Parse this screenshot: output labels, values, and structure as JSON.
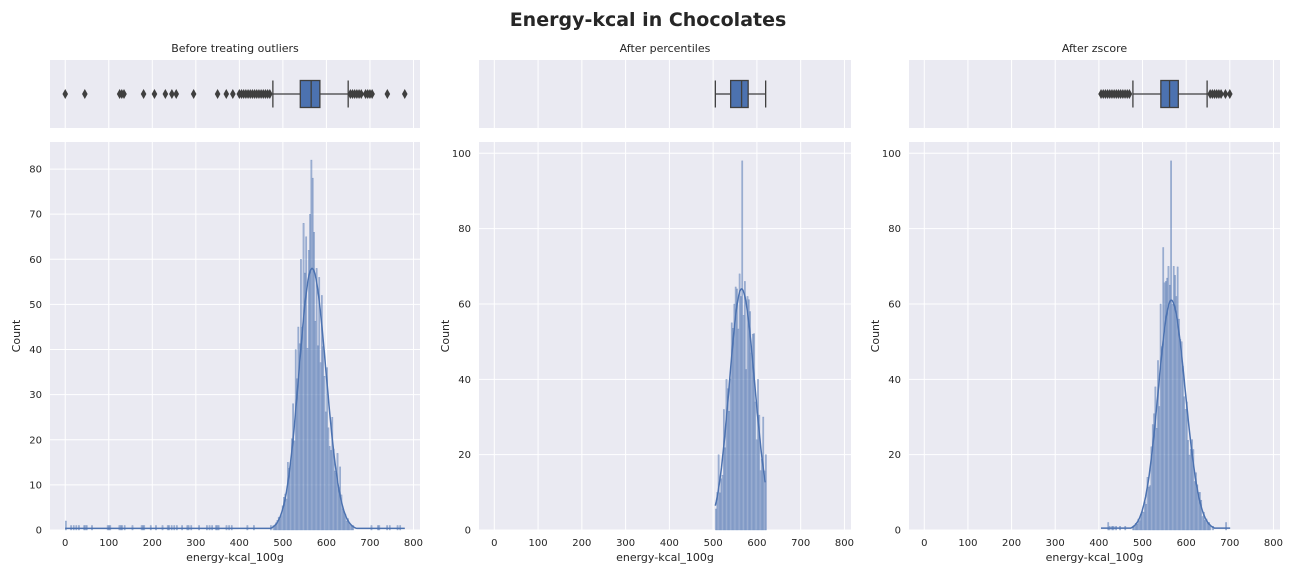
{
  "figure": {
    "title": "Energy-kcal in Chocolates"
  },
  "colors": {
    "series": "#4c72b0",
    "background": "#eaeaf2",
    "grid": "#ffffff",
    "box_edge": "#3f3f3f"
  },
  "chart_data": [
    {
      "type": "histogram",
      "title": "Before treating outliers",
      "xlabel": "energy-kcal_100g",
      "ylabel": "Count",
      "xlim": [
        -35,
        815
      ],
      "ylim": [
        0,
        86
      ],
      "xticks": [
        0,
        100,
        200,
        300,
        400,
        500,
        600,
        700,
        800
      ],
      "yticks": [
        0,
        10,
        20,
        30,
        40,
        50,
        60,
        70,
        80
      ],
      "grid": true,
      "bin_width": 3,
      "kde": {
        "peak_x": 567,
        "peak_y": 58,
        "sigma_left": 30,
        "sigma_right": 32,
        "tail_start": 0,
        "tail_end": 780,
        "tail_level": 0.35
      },
      "spikes": [
        {
          "x": 558,
          "y": 62
        },
        {
          "x": 561,
          "y": 70
        },
        {
          "x": 564,
          "y": 82
        },
        {
          "x": 567,
          "y": 78
        },
        {
          "x": 570,
          "y": 66
        },
        {
          "x": 552,
          "y": 65
        },
        {
          "x": 546,
          "y": 68
        },
        {
          "x": 540,
          "y": 60
        },
        {
          "x": 576,
          "y": 58
        },
        {
          "x": 582,
          "y": 56
        },
        {
          "x": 588,
          "y": 52
        },
        {
          "x": 600,
          "y": 36
        },
        {
          "x": 612,
          "y": 25
        },
        {
          "x": 624,
          "y": 17
        },
        {
          "x": 630,
          "y": 14
        },
        {
          "x": 534,
          "y": 45
        },
        {
          "x": 528,
          "y": 40
        },
        {
          "x": 522,
          "y": 28
        },
        {
          "x": 510,
          "y": 15
        },
        {
          "x": 0,
          "y": 2
        },
        {
          "x": 42,
          "y": 1
        },
        {
          "x": 126,
          "y": 1
        },
        {
          "x": 135,
          "y": 1
        },
        {
          "x": 153,
          "y": 1
        },
        {
          "x": 180,
          "y": 1
        },
        {
          "x": 207,
          "y": 1
        },
        {
          "x": 234,
          "y": 1
        }
      ],
      "boxplot": {
        "q1": 540,
        "median": 565,
        "q3": 585,
        "whisker_low": 477,
        "whisker_high": 650,
        "outliers": [
          0,
          45,
          125,
          130,
          135,
          180,
          205,
          230,
          245,
          255,
          295,
          350,
          370,
          385,
          400,
          405,
          410,
          415,
          420,
          425,
          430,
          435,
          440,
          445,
          450,
          455,
          460,
          465,
          470,
          655,
          660,
          665,
          670,
          675,
          680,
          690,
          695,
          700,
          705,
          740,
          780
        ]
      }
    },
    {
      "type": "histogram",
      "title": "After percentiles",
      "xlabel": "energy-kcal_100g",
      "ylabel": "Count",
      "xlim": [
        -35,
        815
      ],
      "ylim": [
        0,
        103
      ],
      "xticks": [
        0,
        100,
        200,
        300,
        400,
        500,
        600,
        700,
        800
      ],
      "yticks": [
        0,
        20,
        40,
        60,
        80,
        100
      ],
      "grid": true,
      "bin_width": 3,
      "kde": {
        "peak_x": 565,
        "peak_y": 64,
        "sigma_left": 28,
        "sigma_right": 30,
        "clip_low": 505,
        "clip_high": 620
      },
      "spikes": [
        {
          "x": 564,
          "y": 98
        },
        {
          "x": 561,
          "y": 62
        },
        {
          "x": 567,
          "y": 57
        },
        {
          "x": 570,
          "y": 66
        },
        {
          "x": 558,
          "y": 68
        },
        {
          "x": 552,
          "y": 64
        },
        {
          "x": 546,
          "y": 60
        },
        {
          "x": 540,
          "y": 55
        },
        {
          "x": 576,
          "y": 62
        },
        {
          "x": 582,
          "y": 58
        },
        {
          "x": 588,
          "y": 52
        },
        {
          "x": 600,
          "y": 40
        },
        {
          "x": 612,
          "y": 30
        },
        {
          "x": 618,
          "y": 20
        },
        {
          "x": 528,
          "y": 40
        },
        {
          "x": 522,
          "y": 32
        },
        {
          "x": 510,
          "y": 20
        },
        {
          "x": 507,
          "y": 10
        }
      ],
      "boxplot": {
        "q1": 540,
        "median": 565,
        "q3": 580,
        "whisker_low": 505,
        "whisker_high": 620,
        "outliers": []
      }
    },
    {
      "type": "histogram",
      "title": "After zscore",
      "xlabel": "energy-kcal_100g",
      "ylabel": "Count",
      "xlim": [
        -35,
        815
      ],
      "ylim": [
        0,
        103
      ],
      "xticks": [
        0,
        100,
        200,
        300,
        400,
        500,
        600,
        700,
        800
      ],
      "yticks": [
        0,
        20,
        40,
        60,
        80,
        100
      ],
      "grid": true,
      "bin_width": 3,
      "kde": {
        "peak_x": 566,
        "peak_y": 61,
        "sigma_left": 30,
        "sigma_right": 32,
        "clip_low": 405,
        "clip_high": 702,
        "tail_level": 0.5
      },
      "spikes": [
        {
          "x": 564,
          "y": 98
        },
        {
          "x": 561,
          "y": 65
        },
        {
          "x": 567,
          "y": 60
        },
        {
          "x": 570,
          "y": 70
        },
        {
          "x": 558,
          "y": 70
        },
        {
          "x": 552,
          "y": 66
        },
        {
          "x": 546,
          "y": 75
        },
        {
          "x": 540,
          "y": 60
        },
        {
          "x": 576,
          "y": 62
        },
        {
          "x": 582,
          "y": 56
        },
        {
          "x": 588,
          "y": 50
        },
        {
          "x": 600,
          "y": 34
        },
        {
          "x": 612,
          "y": 24
        },
        {
          "x": 624,
          "y": 12
        },
        {
          "x": 630,
          "y": 10
        },
        {
          "x": 534,
          "y": 45
        },
        {
          "x": 528,
          "y": 38
        },
        {
          "x": 522,
          "y": 28
        },
        {
          "x": 510,
          "y": 14
        },
        {
          "x": 420,
          "y": 2
        },
        {
          "x": 690,
          "y": 2
        }
      ],
      "boxplot": {
        "q1": 542,
        "median": 562,
        "q3": 582,
        "whisker_low": 478,
        "whisker_high": 648,
        "outliers": [
          405,
          410,
          415,
          420,
          425,
          430,
          435,
          440,
          445,
          450,
          455,
          460,
          465,
          470,
          655,
          660,
          665,
          670,
          675,
          680,
          690,
          700
        ]
      }
    }
  ]
}
